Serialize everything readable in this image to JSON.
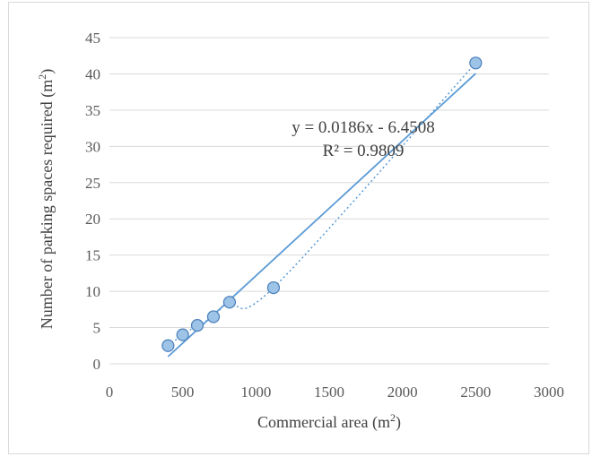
{
  "chart_data": {
    "type": "scatter",
    "title": "",
    "xlabel": "Commercial area (m",
    "xlabel_sup": "2",
    "xlabel_end": ")",
    "ylabel": "Number of parking spaces required (m",
    "ylabel_sup": "2",
    "ylabel_end": ")",
    "xlim": [
      0,
      3000
    ],
    "ylim": [
      0,
      45
    ],
    "xticks": [
      "0",
      "500",
      "1000",
      "1500",
      "2000",
      "2500",
      "3000"
    ],
    "yticks": [
      "0",
      "5",
      "10",
      "15",
      "20",
      "25",
      "30",
      "35",
      "40",
      "45"
    ],
    "grid": "horizontal",
    "legend": "none",
    "series": [
      {
        "x": [
          400,
          500,
          600,
          710,
          820,
          1120,
          2500
        ],
        "y": [
          2.5,
          4,
          5.3,
          6.5,
          8.5,
          10.5,
          41.5
        ]
      }
    ],
    "trendline": {
      "type": "linear",
      "slope": 0.0186,
      "intercept": -6.4508,
      "x_range": [
        400,
        2500
      ],
      "equation": "y = 0.0186x - 6.4508",
      "r2": "R² = 0.9809"
    },
    "colors": {
      "marker_fill": "#9dc3e6",
      "marker_stroke": "#4a7ebb",
      "trend": "#5b9bd5",
      "grid": "#d9d9d9"
    }
  }
}
